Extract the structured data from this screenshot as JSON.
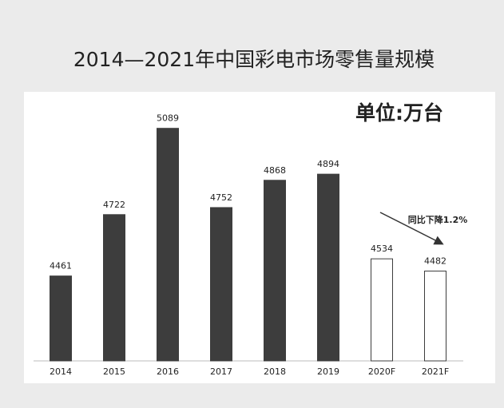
{
  "chart_data": {
    "type": "bar",
    "title": "2014—2021年中国彩电市场零售量规模",
    "unit": "单位:万台",
    "annotation": "同比下降1.2%",
    "categories": [
      "2014",
      "2015",
      "2016",
      "2017",
      "2018",
      "2019",
      "2020F",
      "2021F"
    ],
    "values": [
      4461,
      4722,
      5089,
      4752,
      4868,
      4894,
      4534,
      4482
    ],
    "colors": [
      "#3d3d3d",
      "#3d3d3d",
      "#3d3d3d",
      "#3d3d3d",
      "#3d3d3d",
      "#3d3d3d",
      "#ffffff",
      "#ffffff"
    ],
    "edge_color": "#3d3d3d",
    "ylim": [
      4100,
      5200
    ]
  }
}
